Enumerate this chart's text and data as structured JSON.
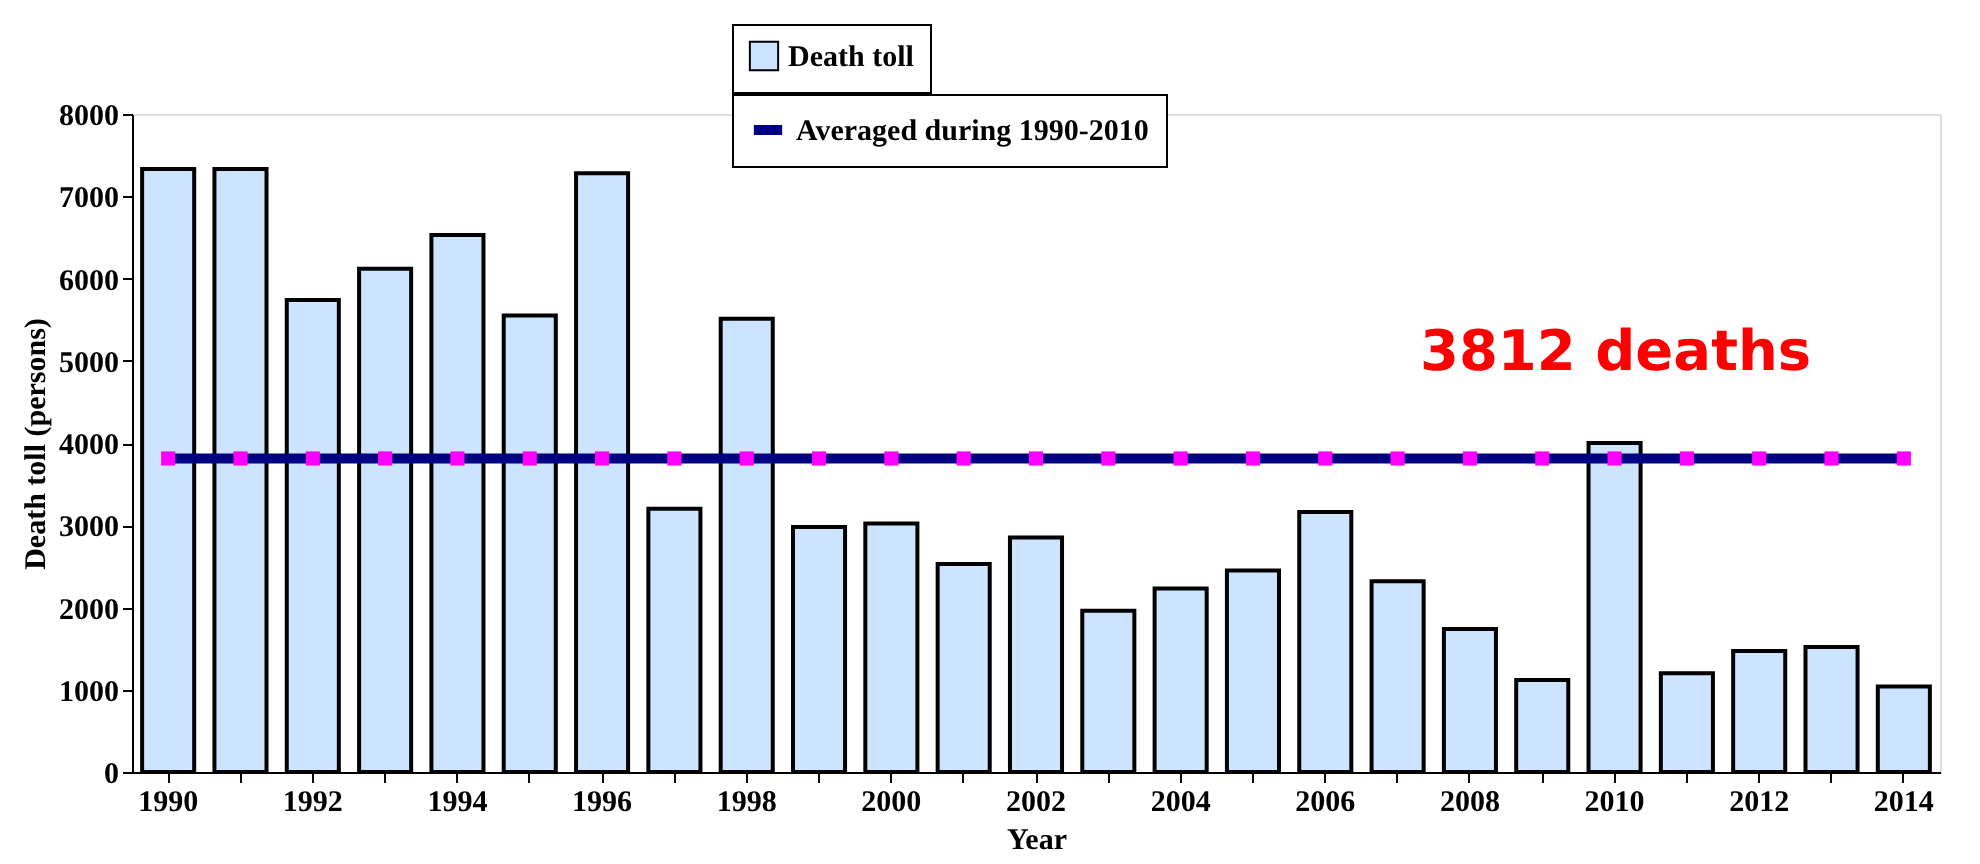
{
  "chart_data": {
    "type": "bar",
    "xlabel": "Year",
    "ylabel": "Death toll (persons)",
    "categories": [
      "1990",
      null,
      "1992",
      null,
      "1994",
      null,
      "1996",
      null,
      "1998",
      null,
      "2000",
      null,
      "2002",
      null,
      "2004",
      null,
      "2006",
      null,
      "2008",
      null,
      "2010",
      null,
      "2012",
      null,
      "2014"
    ],
    "series": [
      {
        "name": "Death toll",
        "color": "#cce4ff",
        "values": [
          7330,
          7330,
          5740,
          6120,
          6530,
          5550,
          7280,
          3200,
          5510,
          2980,
          3020,
          2530,
          2850,
          1960,
          2230,
          2450,
          3160,
          2320,
          1740,
          1120,
          4000,
          1200,
          1470,
          1520,
          1040
        ]
      },
      {
        "name": "Averaged during 1990-2010",
        "type": "line",
        "color": "#000080",
        "marker": "square",
        "values": [
          3812,
          3812,
          3812,
          3812,
          3812,
          3812,
          3812,
          3812,
          3812,
          3812,
          3812,
          3812,
          3812,
          3812,
          3812,
          3812,
          3812,
          3812,
          3812,
          3812,
          3812,
          3812,
          3812,
          3812,
          3812
        ]
      }
    ],
    "ylim": [
      0,
      8000
    ],
    "yticks": [
      0,
      1000,
      2000,
      3000,
      4000,
      5000,
      6000,
      7000,
      8000
    ],
    "grid": false,
    "legend": "top",
    "annotations": [
      {
        "text": "3812 deaths",
        "x": "2008",
        "y": 3812
      }
    ]
  }
}
